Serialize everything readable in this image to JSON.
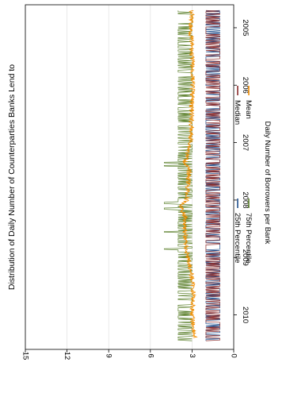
{
  "chart_data": {
    "type": "line",
    "title": "Distribution of Daily Number of Counterparties Banks Lend to",
    "xlabel": "",
    "ylabel": "Daily Number of Borrowers per Bank",
    "x_ticks": [
      "2005",
      "2006",
      "2007",
      "2008",
      "2009",
      "2010"
    ],
    "xlim": [
      2004.6,
      2010.6
    ],
    "y_ticks": [
      0,
      3,
      6,
      9,
      12,
      15
    ],
    "ylim": [
      0,
      15
    ],
    "grid": true,
    "legend_position": "bottom",
    "legend": [
      {
        "name": "25th Percentile",
        "color": "#1f4e8c"
      },
      {
        "name": "Median",
        "color": "#8b2b2b"
      },
      {
        "name": "75th Percentile",
        "color": "#5a7f2a"
      },
      {
        "name": "Mean",
        "color": "#f28e00"
      }
    ],
    "series": [
      {
        "name": "25th Percentile",
        "color": "#1f4e8c",
        "summary": "roughly 1-2 throughout, largely hidden beneath the median band",
        "base": 1,
        "alt": 2
      },
      {
        "name": "Median",
        "color": "#8b2b2b",
        "summary": "alternates rapidly between 1 and 2 throughout the sample",
        "base": 1,
        "alt": 2
      },
      {
        "name": "75th Percentile",
        "color": "#5a7f2a",
        "summary": "alternates between 3 and 4 with spikes to about 5 in 2007-2009",
        "base": 3,
        "alt": 4,
        "spikes": [
          [
            2007.35,
            5
          ],
          [
            2007.4,
            5
          ],
          [
            2008.05,
            5
          ],
          [
            2008.15,
            5
          ],
          [
            2008.55,
            5
          ],
          [
            2008.85,
            5
          ]
        ]
      },
      {
        "name": "Mean",
        "color": "#f28e00",
        "points": [
          [
            2004.7,
            3.0
          ],
          [
            2005.0,
            3.1
          ],
          [
            2005.5,
            3.0
          ],
          [
            2006.0,
            2.95
          ],
          [
            2006.5,
            3.05
          ],
          [
            2007.0,
            3.1
          ],
          [
            2007.35,
            3.5
          ],
          [
            2007.5,
            3.2
          ],
          [
            2008.0,
            3.4
          ],
          [
            2008.1,
            3.8
          ],
          [
            2008.3,
            3.5
          ],
          [
            2008.6,
            3.5
          ],
          [
            2008.9,
            3.4
          ],
          [
            2009.2,
            3.1
          ],
          [
            2009.6,
            2.9
          ],
          [
            2010.0,
            3.0
          ],
          [
            2010.4,
            2.8
          ]
        ]
      }
    ]
  }
}
